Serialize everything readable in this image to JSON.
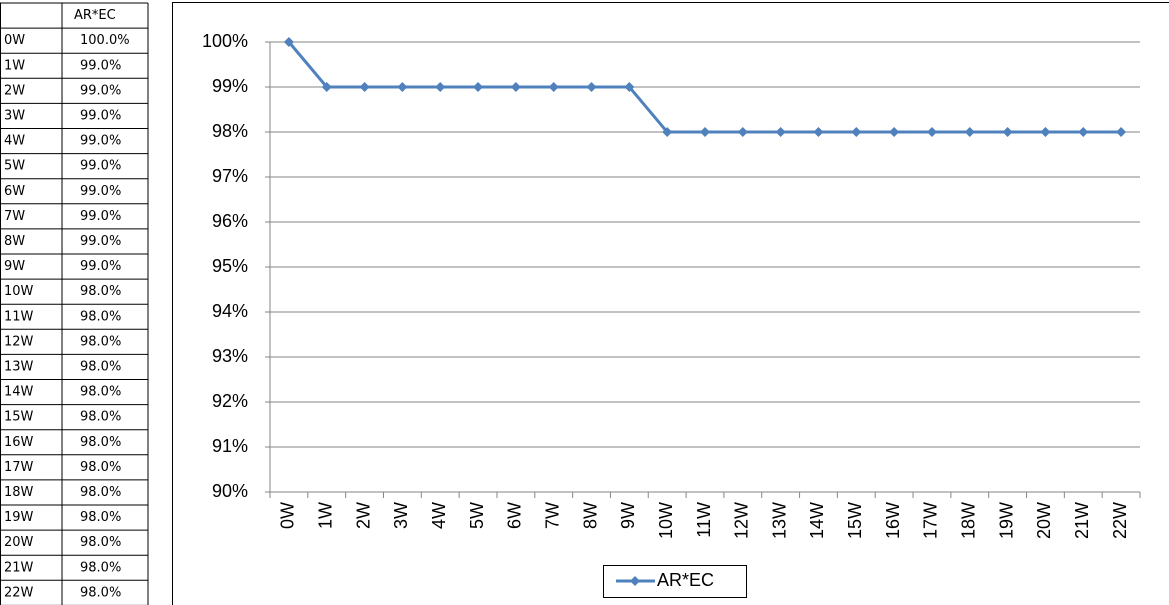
{
  "table": {
    "columns": [
      "AR*EC"
    ],
    "rows": [
      [
        "0W",
        "100.0%"
      ],
      [
        "1W",
        "99.0%"
      ],
      [
        "2W",
        "99.0%"
      ],
      [
        "3W",
        "99.0%"
      ],
      [
        "4W",
        "99.0%"
      ],
      [
        "5W",
        "99.0%"
      ],
      [
        "6W",
        "99.0%"
      ],
      [
        "7W",
        "99.0%"
      ],
      [
        "8W",
        "99.0%"
      ],
      [
        "9W",
        "99.0%"
      ],
      [
        "10W",
        "98.0%"
      ],
      [
        "11W",
        "98.0%"
      ],
      [
        "12W",
        "98.0%"
      ],
      [
        "13W",
        "98.0%"
      ],
      [
        "14W",
        "98.0%"
      ],
      [
        "15W",
        "98.0%"
      ],
      [
        "16W",
        "98.0%"
      ],
      [
        "17W",
        "98.0%"
      ],
      [
        "18W",
        "98.0%"
      ],
      [
        "19W",
        "98.0%"
      ],
      [
        "20W",
        "98.0%"
      ],
      [
        "21W",
        "98.0%"
      ],
      [
        "22W",
        "98.0%"
      ]
    ]
  },
  "chart_data": {
    "type": "line",
    "categories": [
      "0W",
      "1W",
      "2W",
      "3W",
      "4W",
      "5W",
      "6W",
      "7W",
      "8W",
      "9W",
      "10W",
      "11W",
      "12W",
      "13W",
      "14W",
      "15W",
      "16W",
      "17W",
      "18W",
      "19W",
      "20W",
      "21W",
      "22W"
    ],
    "series": [
      {
        "name": "AR*EC",
        "color": "#4f81bd",
        "values": [
          100,
          99,
          99,
          99,
          99,
          99,
          99,
          99,
          99,
          99,
          98,
          98,
          98,
          98,
          98,
          98,
          98,
          98,
          98,
          98,
          98,
          98,
          98
        ]
      }
    ],
    "ylim": [
      90,
      100
    ],
    "yticks": [
      {
        "value": 90,
        "label": "90%"
      },
      {
        "value": 91,
        "label": "91%"
      },
      {
        "value": 92,
        "label": "92%"
      },
      {
        "value": 93,
        "label": "93%"
      },
      {
        "value": 94,
        "label": "94%"
      },
      {
        "value": 95,
        "label": "95%"
      },
      {
        "value": 96,
        "label": "96%"
      },
      {
        "value": 97,
        "label": "97%"
      },
      {
        "value": 98,
        "label": "98%"
      },
      {
        "value": 99,
        "label": "99%"
      },
      {
        "value": 100,
        "label": "100%"
      }
    ],
    "grid": true,
    "legend": "bottom"
  }
}
